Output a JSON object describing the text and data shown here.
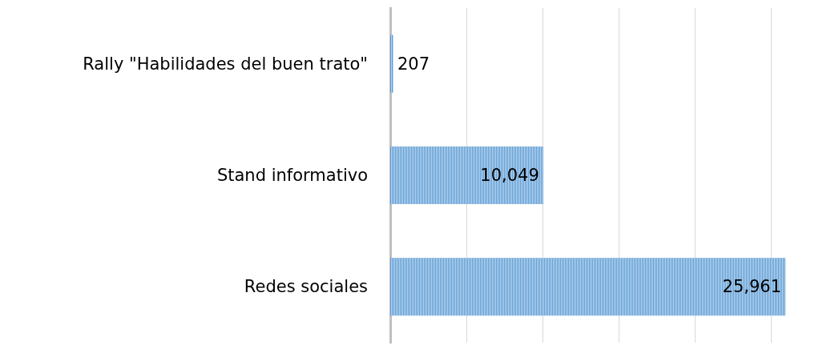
{
  "chart_data": {
    "type": "bar",
    "orientation": "horizontal",
    "categories": [
      "Rally \"Habilidades del buen trato\"",
      "Stand informativo",
      "Redes sociales"
    ],
    "values": [
      207,
      10049,
      25961
    ],
    "value_labels": [
      "207",
      "10,049",
      "25,961"
    ],
    "color": "#5b9bd5",
    "xticks": [
      {
        "value": 0,
        "label": null
      },
      {
        "value": 5000,
        "label": null
      },
      {
        "value": 10000,
        "label": null
      },
      {
        "value": 15000,
        "label": null
      },
      {
        "value": 20000,
        "label": null
      },
      {
        "value": 25000,
        "label": null
      }
    ],
    "tick_labels": "y",
    "grid": "x"
  }
}
